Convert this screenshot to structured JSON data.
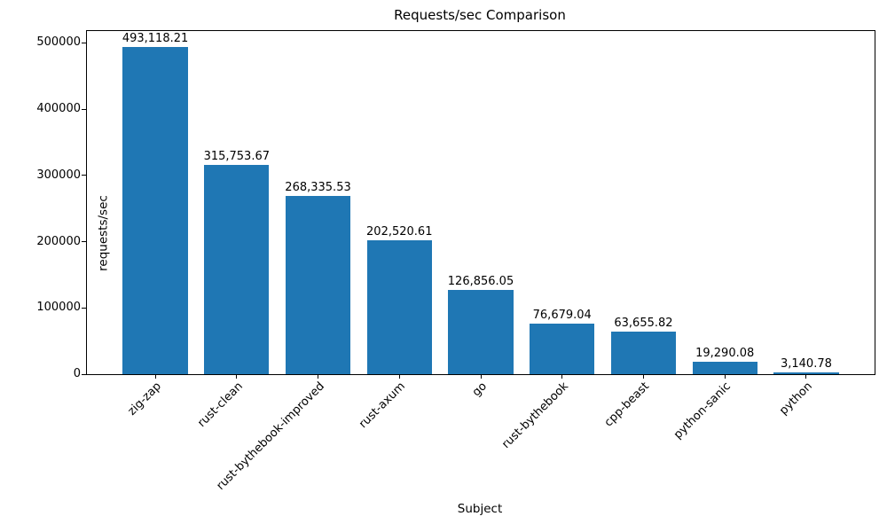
{
  "chart_data": {
    "type": "bar",
    "title": "Requests/sec Comparison",
    "xlabel": "Subject",
    "ylabel": "requests/sec",
    "categories": [
      "zig-zap",
      "rust-clean",
      "rust-bythebook-improved",
      "rust-axum",
      "go",
      "rust-bythebook",
      "cpp-beast",
      "python-sanic",
      "python"
    ],
    "values": [
      493118.21,
      315753.67,
      268335.53,
      202520.61,
      126856.05,
      76679.04,
      63655.82,
      19290.08,
      3140.78
    ],
    "bar_value_labels": [
      "493,118.21",
      "315,753.67",
      "268,335.53",
      "202,520.61",
      "126,856.05",
      "76,679.04",
      "63,655.82",
      "19,290.08",
      "3,140.78"
    ],
    "yticks": [
      0,
      100000,
      200000,
      300000,
      400000,
      500000
    ],
    "ytick_labels": [
      "0",
      "100000",
      "200000",
      "300000",
      "400000",
      "500000"
    ],
    "ylim": [
      0,
      517774
    ],
    "bar_color": "#1f77b4",
    "axis_color": "#000000",
    "grid": false,
    "legend": false,
    "x_tick_rotation_deg": 45
  }
}
